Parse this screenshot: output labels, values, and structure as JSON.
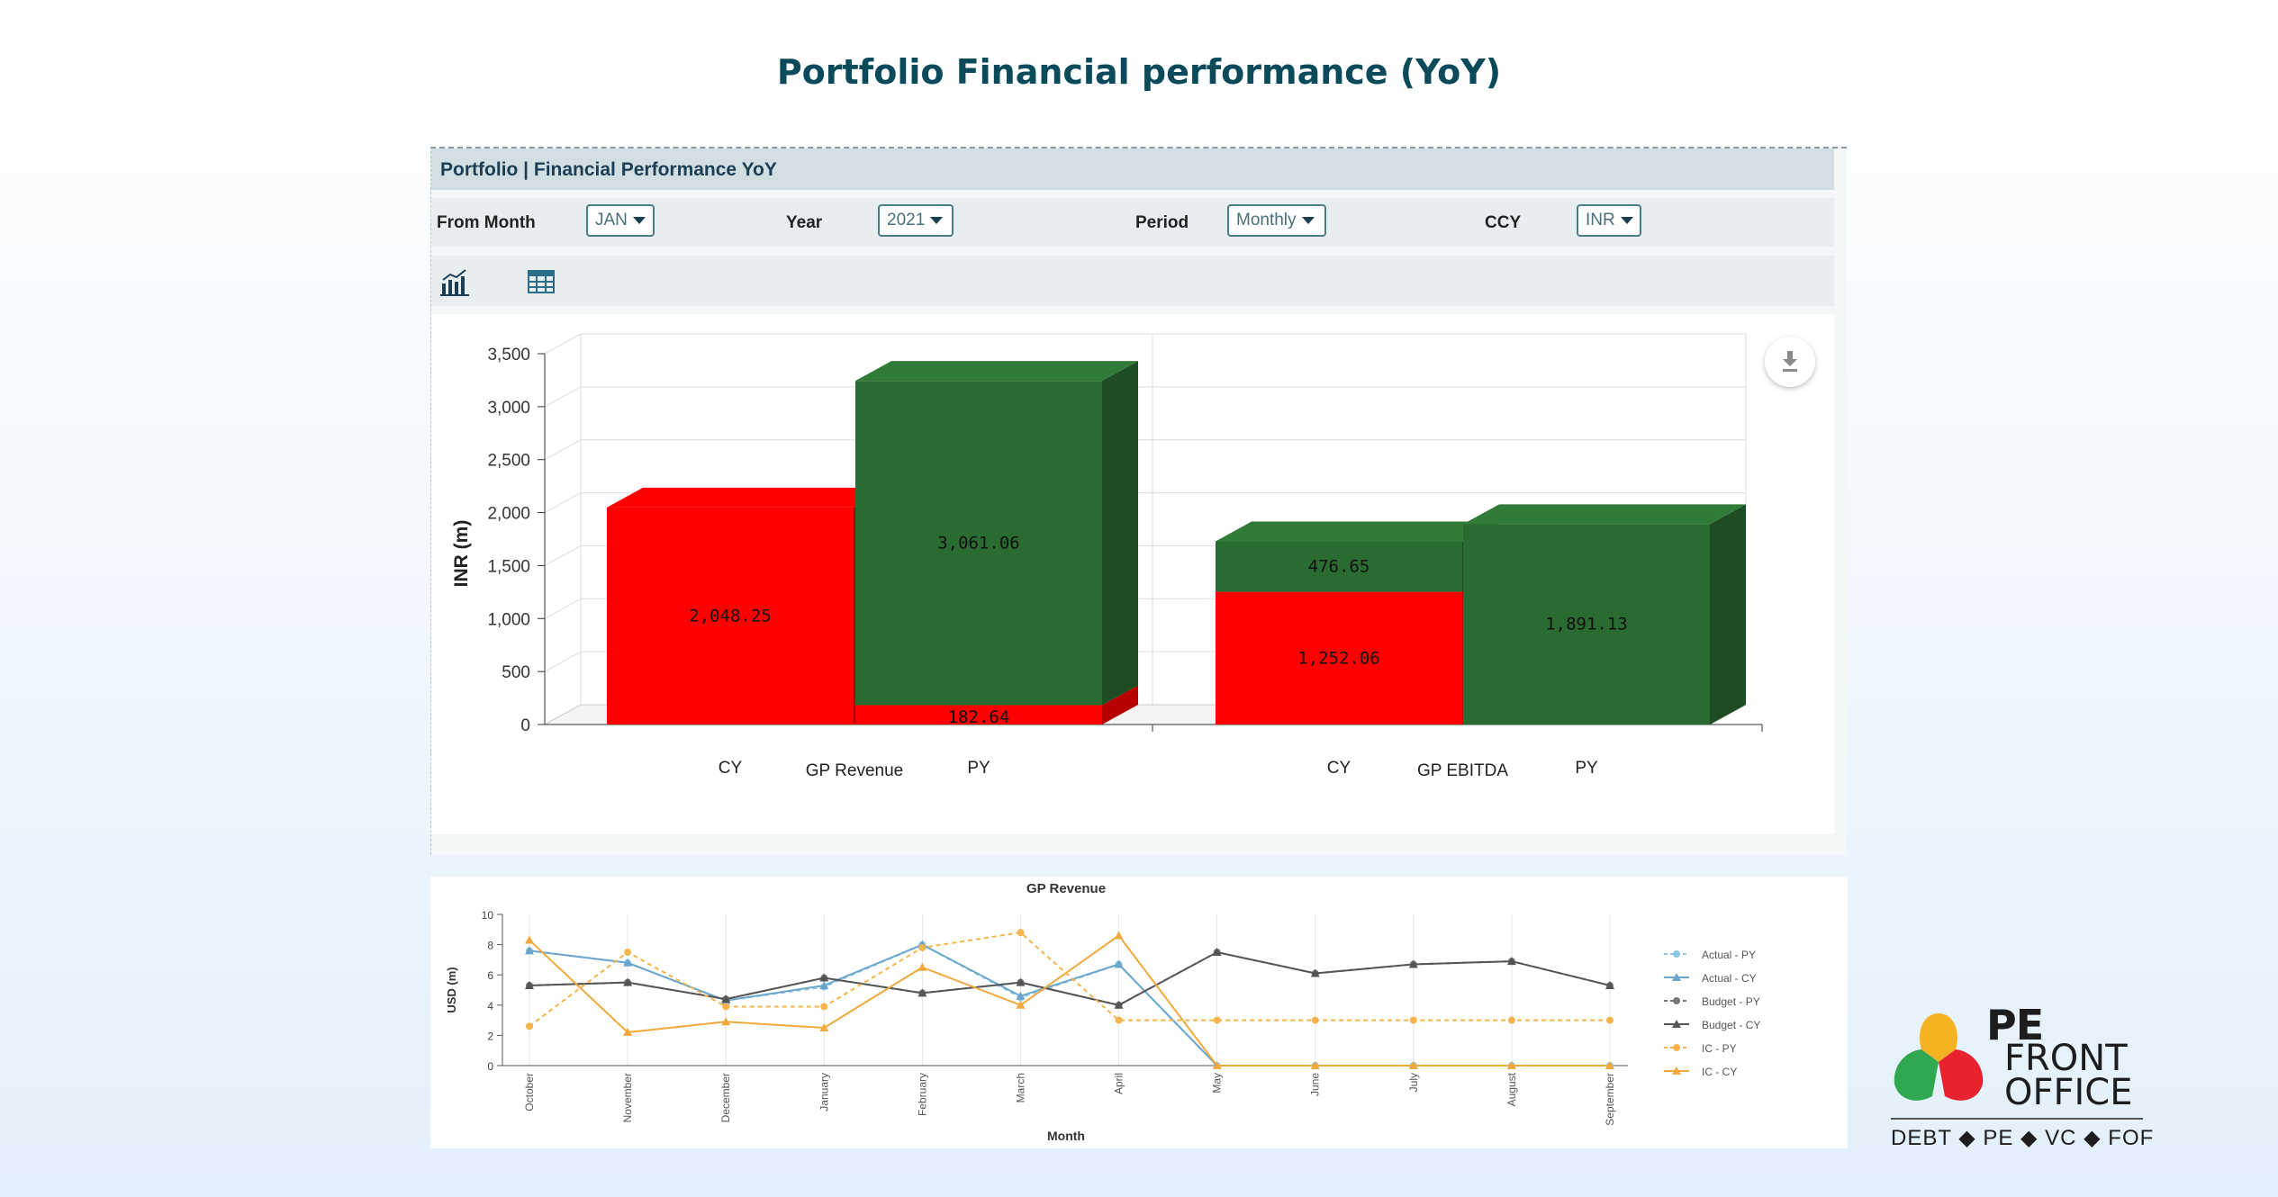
{
  "page": {
    "title": "Portfolio Financial performance (YoY)"
  },
  "panel": {
    "title": "Portfolio | Financial Performance YoY",
    "filters": {
      "from_month_label": "From Month",
      "from_month_value": "JAN",
      "year_label": "Year",
      "year_value": "2021",
      "period_label": "Period",
      "period_value": "Monthly",
      "ccy_label": "CCY",
      "ccy_value": "INR"
    },
    "view_icons": [
      "bar-chart-icon",
      "table-icon"
    ]
  },
  "download_icon": "download-icon",
  "chart_data": [
    {
      "type": "bar",
      "stacked": true,
      "three_d": true,
      "ylabel": "INR (m)",
      "ylim": [
        0,
        3500
      ],
      "yticks": [
        "0",
        "500",
        "1,000",
        "1,500",
        "2,000",
        "2,500",
        "3,000",
        "3,500"
      ],
      "groups": [
        {
          "name": "GP Revenue",
          "bars": [
            {
              "label": "CY",
              "red": 2048.25,
              "green": 0,
              "red_label": "2,048.25",
              "green_label": ""
            },
            {
              "label": "PY",
              "red": 182.64,
              "green": 3061.06,
              "red_label": "182.64",
              "green_label": "3,061.06"
            }
          ]
        },
        {
          "name": "GP EBITDA",
          "bars": [
            {
              "label": "CY",
              "red": 1252.06,
              "green": 476.65,
              "red_label": "1,252.06",
              "green_label": "476.65"
            },
            {
              "label": "PY",
              "red": 0,
              "green": 1891.13,
              "red_label": "",
              "green_label": "1,891.13"
            }
          ]
        }
      ],
      "colors": {
        "red": "#ff0000",
        "green": "#2a6b31"
      }
    },
    {
      "type": "line",
      "title": "GP Revenue",
      "xlabel": "Month",
      "ylabel": "USD (m)",
      "ylim": [
        0,
        10
      ],
      "yticks": [
        "0",
        "2",
        "4",
        "6",
        "8",
        "10"
      ],
      "categories": [
        "October",
        "November",
        "December",
        "January",
        "February",
        "March",
        "April",
        "May",
        "June",
        "July",
        "August",
        "September"
      ],
      "series": [
        {
          "name": "Actual - PY",
          "color": "#8fc6e6",
          "dashed": true,
          "marker": "circle",
          "values": [
            7.6,
            6.8,
            4.3,
            5.2,
            8.0,
            4.5,
            6.7,
            0,
            0,
            0,
            0,
            0
          ]
        },
        {
          "name": "Actual - CY",
          "color": "#6aa6cc",
          "dashed": false,
          "marker": "triangle",
          "values": [
            7.6,
            6.8,
            4.3,
            5.3,
            8.0,
            4.6,
            6.7,
            0,
            0,
            0,
            0,
            0
          ]
        },
        {
          "name": "Budget - PY",
          "color": "#777777",
          "dashed": true,
          "marker": "circle",
          "values": [
            5.3,
            5.5,
            4.4,
            5.8,
            4.8,
            5.5,
            4.0,
            7.5,
            6.1,
            6.7,
            6.9,
            5.3
          ]
        },
        {
          "name": "Budget - CY",
          "color": "#555555",
          "dashed": false,
          "marker": "triangle",
          "values": [
            5.3,
            5.5,
            4.4,
            5.8,
            4.8,
            5.5,
            4.0,
            7.5,
            6.1,
            6.7,
            6.9,
            5.3
          ]
        },
        {
          "name": "IC - PY",
          "color": "#f6b44b",
          "dashed": true,
          "marker": "circle",
          "values": [
            2.6,
            7.5,
            3.9,
            3.9,
            7.8,
            8.8,
            3.0,
            3.0,
            3.0,
            3.0,
            3.0,
            3.0
          ]
        },
        {
          "name": "IC - CY",
          "color": "#f2a93b",
          "dashed": false,
          "marker": "triangle",
          "values": [
            8.3,
            2.2,
            2.9,
            2.5,
            6.5,
            4.0,
            8.6,
            0,
            0,
            0,
            0,
            0
          ]
        }
      ]
    }
  ],
  "logo": {
    "line1": "PE",
    "line2": "FRONT",
    "line3": "OFFICE",
    "tagline": "DEBT ◆ PE ◆ VC ◆ FOF",
    "colors": [
      "#f5b321",
      "#2fa84f",
      "#e8232f"
    ]
  }
}
